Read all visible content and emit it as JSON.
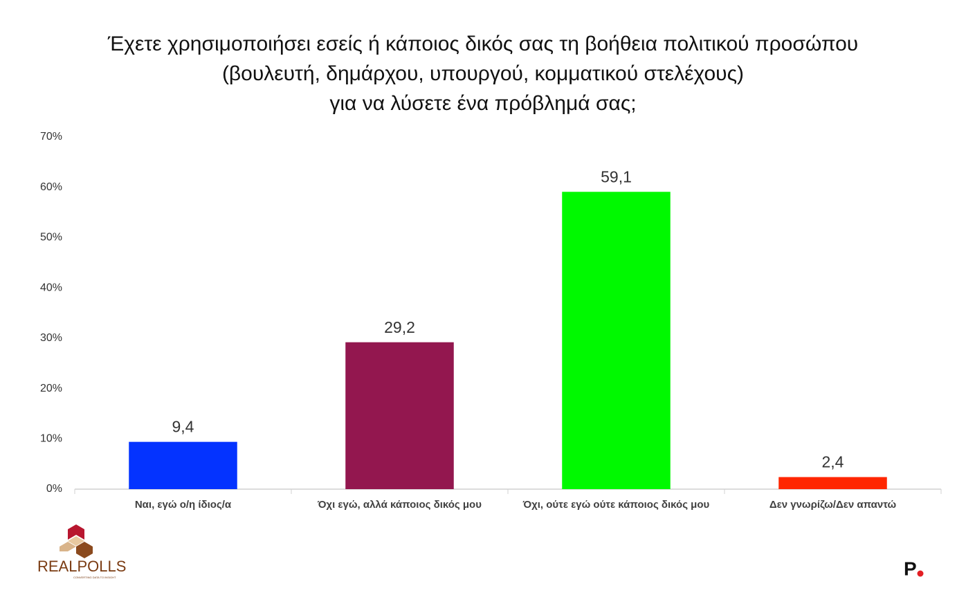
{
  "chart_data": {
    "type": "bar",
    "title": [
      "Έχετε χρησιμοποιήσει εσείς ή κάποιος δικός σας τη βοήθεια πολιτικού προσώπου",
      "(βουλευτή, δημάρχου, υπουργού, κομματικού στελέχους)",
      "για να λύσετε ένα πρόβλημά σας;"
    ],
    "categories": [
      "Ναι, εγώ ο/η ίδιος/α",
      "Όχι εγώ, αλλά κάποιος δικός μου",
      "Όχι, ούτε εγώ ούτε κάποιος δικός μου",
      "Δεν γνωρίζω/Δεν απαντώ"
    ],
    "values": [
      9.4,
      29.2,
      59.1,
      2.4
    ],
    "value_labels": [
      "9,4",
      "29,2",
      "59,1",
      "2,4"
    ],
    "colors": [
      "#0433ff",
      "#93174f",
      "#00f900",
      "#ff2600"
    ],
    "ylim": [
      0,
      70
    ],
    "yticks": [
      {
        "value": 0,
        "label": "0%"
      },
      {
        "value": 10,
        "label": "10%"
      },
      {
        "value": 20,
        "label": "20%"
      },
      {
        "value": 30,
        "label": "30%"
      },
      {
        "value": 40,
        "label": "40%"
      },
      {
        "value": 50,
        "label": "50%"
      },
      {
        "value": 60,
        "label": "60%"
      },
      {
        "value": 70,
        "label": "70%"
      }
    ],
    "grid": false
  },
  "logos": {
    "left": "REALPOLLS",
    "left_tagline": "CONVERTING DATA TO INSIGHT",
    "right": "P"
  }
}
